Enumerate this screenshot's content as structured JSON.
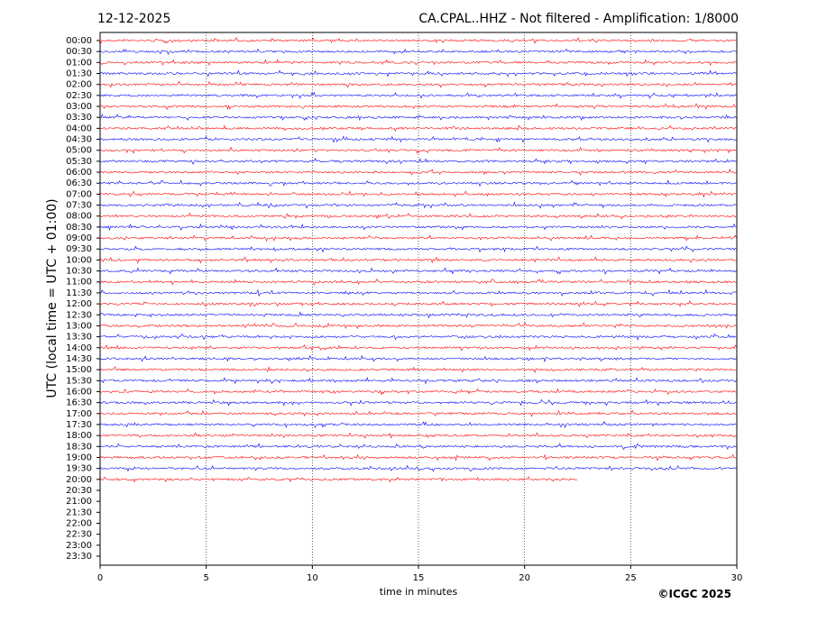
{
  "chart_data": {
    "type": "helicorder",
    "date": "12-12-2025",
    "title": "CA.CPAL..HHZ - Not filtered - Amplification: 1/8000",
    "ylabel": "UTC (local time = UTC + 01:00)",
    "xlabel": "time in minutes",
    "copyright": "©ICGC 2025",
    "categories": [
      "00:00",
      "00:30",
      "01:00",
      "01:30",
      "02:00",
      "02:30",
      "03:00",
      "03:30",
      "04:00",
      "04:30",
      "05:00",
      "05:30",
      "06:00",
      "06:30",
      "07:00",
      "07:30",
      "08:00",
      "08:30",
      "09:00",
      "09:30",
      "10:00",
      "10:30",
      "11:00",
      "11:30",
      "12:00",
      "12:30",
      "13:00",
      "13:30",
      "14:00",
      "14:30",
      "15:00",
      "15:30",
      "16:00",
      "16:30",
      "17:00",
      "17:30",
      "18:00",
      "18:30",
      "19:00",
      "19:30",
      "20:00",
      "20:30",
      "21:00",
      "21:30",
      "22:00",
      "22:30",
      "23:00",
      "23:30"
    ],
    "values": [
      30,
      30,
      30,
      30,
      30,
      30,
      30,
      30,
      30,
      30,
      30,
      30,
      30,
      30,
      30,
      30,
      30,
      30,
      30,
      30,
      30,
      30,
      30,
      30,
      30,
      30,
      30,
      30,
      30,
      30,
      30,
      30,
      30,
      30,
      30,
      30,
      30,
      30,
      30,
      30,
      22.5,
      null,
      null,
      null,
      null,
      null,
      null,
      null
    ],
    "colors": [
      "#ff0000",
      "#0000ff"
    ],
    "xlim": [
      0,
      30
    ],
    "xticks": [
      0,
      5,
      10,
      15,
      20,
      25,
      30
    ],
    "grid": true
  }
}
